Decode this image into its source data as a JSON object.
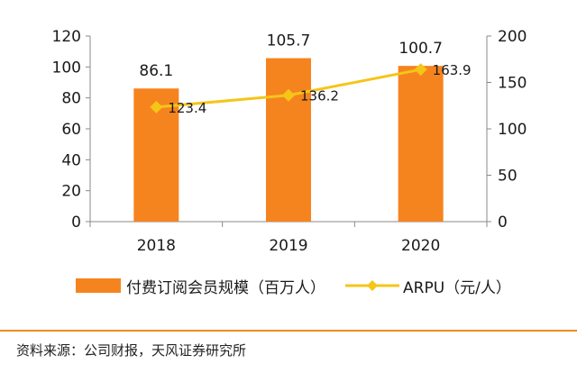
{
  "chart_data": {
    "type": "bar+line",
    "categories": [
      "2018",
      "2019",
      "2020"
    ],
    "series": [
      {
        "name": "付费订阅会员规模（百万人）",
        "type": "bar",
        "axis": "left",
        "values": [
          86.1,
          105.7,
          100.7
        ],
        "labels": [
          "86.1",
          "105.7",
          "100.7"
        ],
        "color": "#f5841f"
      },
      {
        "name": "ARPU（元/人）",
        "type": "line",
        "axis": "right",
        "values": [
          123.4,
          136.2,
          163.9
        ],
        "labels": [
          "123.4",
          "136.2",
          "163.9"
        ],
        "color": "#f5c518"
      }
    ],
    "y_left": {
      "range": [
        0,
        120
      ],
      "ticks": [
        "0",
        "20",
        "40",
        "60",
        "80",
        "100",
        "120"
      ]
    },
    "y_right": {
      "range": [
        0,
        200
      ],
      "ticks": [
        "0",
        "50",
        "100",
        "150",
        "200"
      ]
    },
    "grid": false,
    "legend_position": "bottom"
  },
  "source": "资料来源：公司财报，天风证券研究所"
}
